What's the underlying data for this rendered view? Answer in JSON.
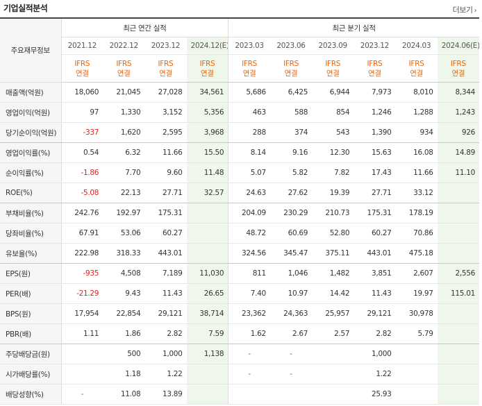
{
  "header": {
    "title": "기업실적분석",
    "more_label": "더보기"
  },
  "table": {
    "row_header_label": "주요재무정보",
    "annual_group": "최근 연간 실적",
    "quarter_group": "최근 분기 실적",
    "annual_periods": [
      "2021.12",
      "2022.12",
      "2023.12",
      "2024.12(E)"
    ],
    "quarter_periods": [
      "2023.03",
      "2023.06",
      "2023.09",
      "2023.12",
      "2024.03",
      "2024.06(E)"
    ],
    "basis_top": "IFRS",
    "basis_bottom": "연결",
    "rows": [
      {
        "label": "매출액(억원)",
        "values": [
          "18,060",
          "21,045",
          "27,028",
          "34,561",
          "5,686",
          "6,425",
          "6,944",
          "7,973",
          "8,010",
          "8,344"
        ]
      },
      {
        "label": "영업이익(억원)",
        "values": [
          "97",
          "1,330",
          "3,152",
          "5,356",
          "463",
          "588",
          "854",
          "1,246",
          "1,288",
          "1,243"
        ]
      },
      {
        "label": "당기순이익(억원)",
        "values": [
          "-337",
          "1,620",
          "2,595",
          "3,968",
          "288",
          "374",
          "543",
          "1,390",
          "934",
          "926"
        ]
      },
      {
        "label": "영업이익률(%)",
        "values": [
          "0.54",
          "6.32",
          "11.66",
          "15.50",
          "8.14",
          "9.16",
          "12.30",
          "15.63",
          "16.08",
          "14.89"
        ]
      },
      {
        "label": "순이익률(%)",
        "values": [
          "-1.86",
          "7.70",
          "9.60",
          "11.48",
          "5.07",
          "5.82",
          "7.82",
          "17.43",
          "11.66",
          "11.10"
        ]
      },
      {
        "label": "ROE(%)",
        "values": [
          "-5.08",
          "22.13",
          "27.71",
          "32.57",
          "24.63",
          "27.62",
          "19.39",
          "27.71",
          "33.12",
          ""
        ]
      },
      {
        "label": "부채비율(%)",
        "values": [
          "242.76",
          "192.97",
          "175.31",
          "",
          "204.09",
          "230.29",
          "210.73",
          "175.31",
          "178.19",
          ""
        ]
      },
      {
        "label": "당좌비율(%)",
        "values": [
          "67.91",
          "53.06",
          "60.27",
          "",
          "48.72",
          "60.69",
          "52.80",
          "60.27",
          "70.86",
          ""
        ]
      },
      {
        "label": "유보율(%)",
        "values": [
          "222.98",
          "318.33",
          "443.01",
          "",
          "324.56",
          "345.47",
          "375.11",
          "443.01",
          "475.18",
          ""
        ]
      },
      {
        "label": "EPS(원)",
        "values": [
          "-935",
          "4,508",
          "7,189",
          "11,030",
          "811",
          "1,046",
          "1,482",
          "3,851",
          "2,607",
          "2,556"
        ]
      },
      {
        "label": "PER(배)",
        "values": [
          "-21.29",
          "9.43",
          "11.43",
          "26.65",
          "7.40",
          "10.97",
          "14.42",
          "11.43",
          "19.97",
          "115.01"
        ]
      },
      {
        "label": "BPS(원)",
        "values": [
          "17,954",
          "22,854",
          "29,121",
          "38,714",
          "23,362",
          "24,363",
          "25,957",
          "29,121",
          "30,978",
          ""
        ]
      },
      {
        "label": "PBR(배)",
        "values": [
          "1.11",
          "1.86",
          "2.82",
          "7.59",
          "1.62",
          "2.67",
          "2.57",
          "2.82",
          "5.79",
          ""
        ]
      },
      {
        "label": "주당배당금(원)",
        "values": [
          "",
          "500",
          "1,000",
          "1,138",
          "-",
          "-",
          "",
          "1,000",
          "",
          ""
        ]
      },
      {
        "label": "시가배당률(%)",
        "values": [
          "",
          "1.18",
          "1.22",
          "",
          "-",
          "-",
          "",
          "1.22",
          "",
          ""
        ]
      },
      {
        "label": "배당성향(%)",
        "values": [
          "-",
          "11.08",
          "13.89",
          "",
          "",
          "",
          "",
          "25.93",
          "",
          ""
        ]
      }
    ]
  },
  "colors": {
    "estimate_bg": "#eef7ea",
    "negative": "#e02020",
    "basis": "#e8650b"
  }
}
